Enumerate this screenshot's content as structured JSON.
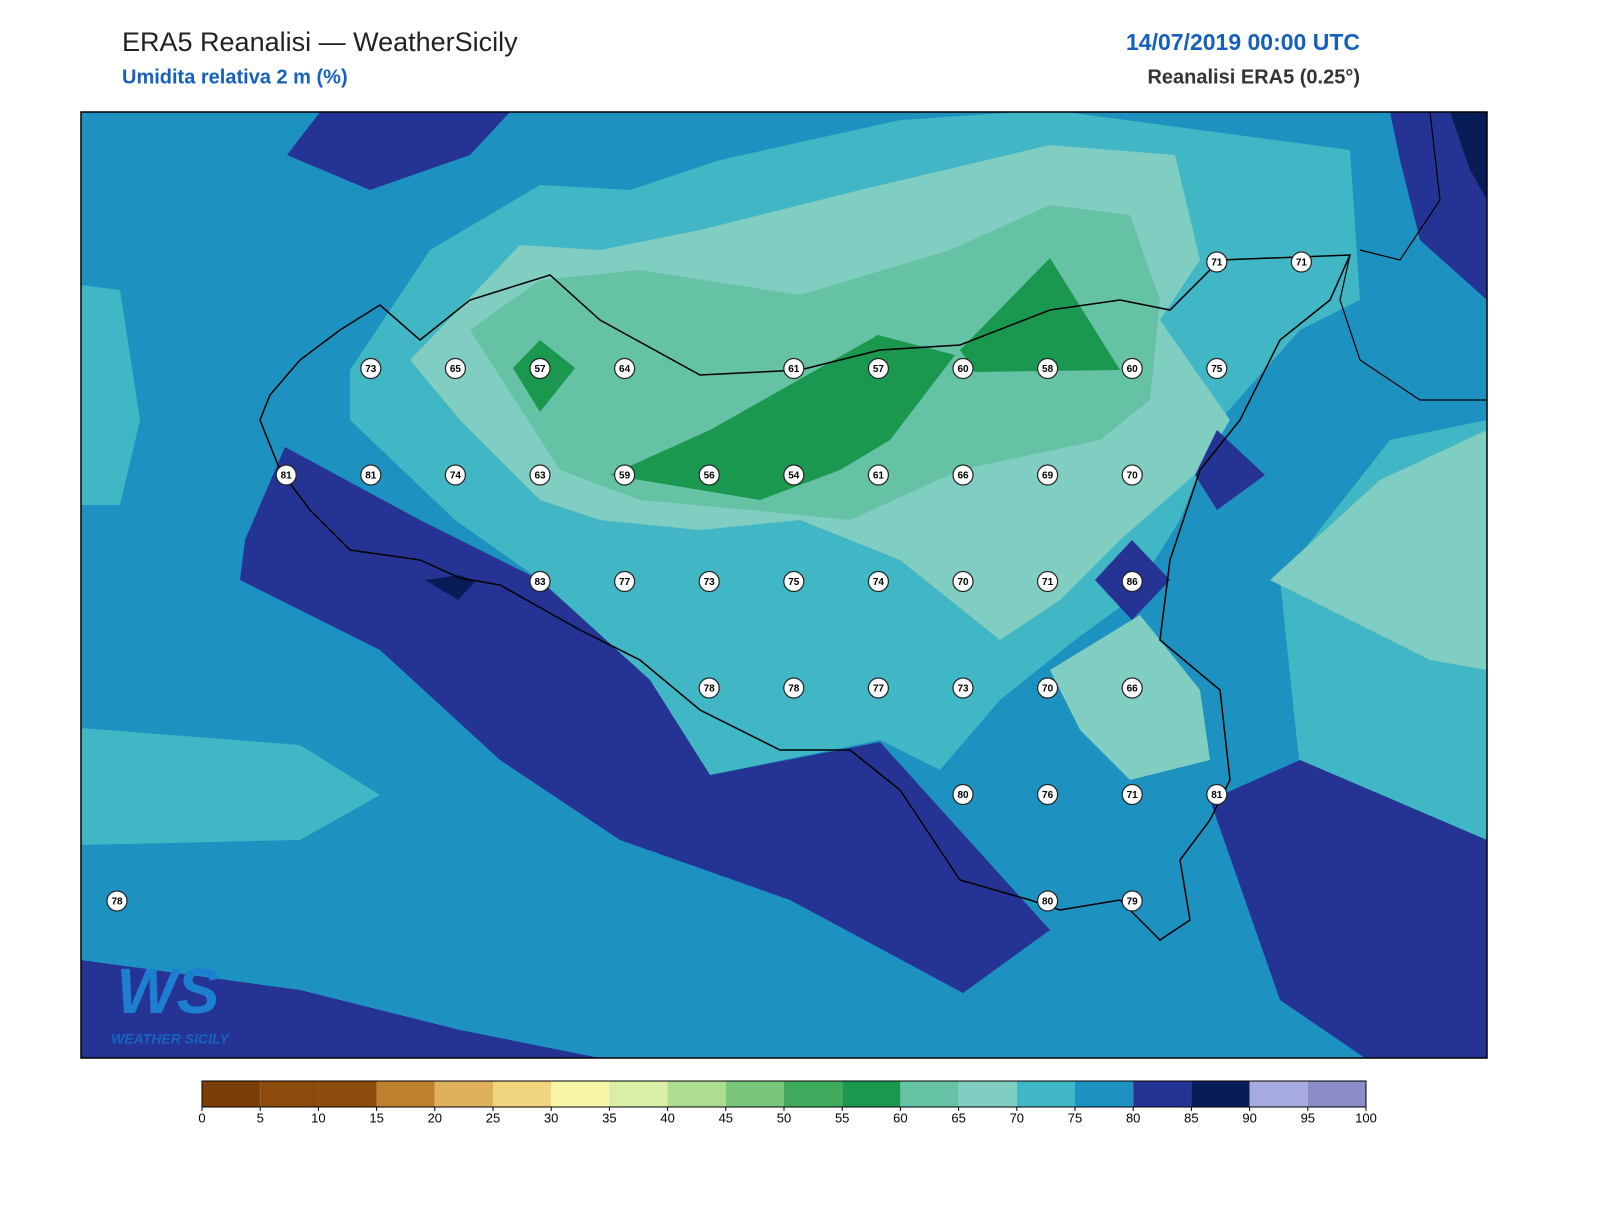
{
  "header": {
    "title": "ERA5 Reanalisi — WeatherSicily",
    "subtitle": "Umidita relativa 2 m (%)",
    "datetime": "14/07/2019 00:00 UTC",
    "model": "Reanalisi ERA5 (0.25°)"
  },
  "stations": {
    "rows": [
      [
        null,
        null,
        null,
        null,
        null,
        null,
        null,
        null,
        null,
        null,
        null,
        null,
        null,
        71,
        71
      ],
      [
        null,
        null,
        null,
        73,
        65,
        57,
        64,
        null,
        61,
        57,
        60,
        58,
        60,
        75,
        null
      ],
      [
        null,
        null,
        81,
        81,
        74,
        63,
        59,
        56,
        54,
        61,
        66,
        69,
        70,
        null,
        null
      ],
      [
        null,
        null,
        null,
        null,
        null,
        83,
        77,
        73,
        75,
        74,
        70,
        71,
        86,
        null,
        null
      ],
      [
        null,
        null,
        null,
        null,
        null,
        null,
        null,
        78,
        78,
        77,
        73,
        70,
        66,
        null,
        null
      ],
      [
        null,
        null,
        null,
        null,
        null,
        null,
        null,
        null,
        null,
        null,
        80,
        76,
        71,
        81,
        null
      ],
      [
        78,
        null,
        null,
        null,
        null,
        null,
        null,
        null,
        null,
        null,
        null,
        80,
        79,
        null,
        null
      ]
    ]
  },
  "colorbar": {
    "levels": [
      0,
      5,
      10,
      15,
      20,
      25,
      30,
      35,
      40,
      45,
      50,
      55,
      60,
      65,
      70,
      75,
      80,
      85,
      90,
      95,
      100
    ],
    "colors": [
      "#7a3f08",
      "#8c4a0c",
      "#8c4a0c",
      "#bf812d",
      "#dfb15c",
      "#f0d57e",
      "#f6f5a8",
      "#d9efa5",
      "#addd8e",
      "#78c679",
      "#41ab5d",
      "#1a9850",
      "#66c2a4",
      "#80cdc1",
      "#41b6c4",
      "#1d91c0",
      "#253494",
      "#081d58",
      "#a6abdf",
      "#8c8cc8"
    ]
  },
  "logo": {
    "mark": "WS",
    "text": "WEATHER SICILY"
  }
}
